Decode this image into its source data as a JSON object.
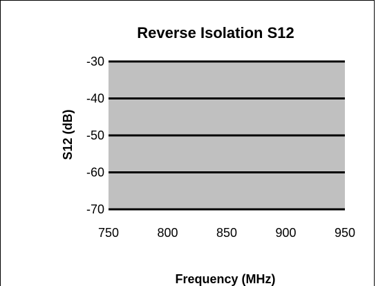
{
  "chart_data": {
    "type": "line",
    "title": "Reverse  Isolation S12",
    "xlabel": "Frequency (MHz)",
    "ylabel": "S12 (dB)",
    "xlim": [
      750,
      950
    ],
    "ylim": [
      -70,
      -30
    ],
    "xticks": [
      750,
      800,
      850,
      900,
      950
    ],
    "yticks": [
      -30,
      -40,
      -50,
      -60,
      -70
    ],
    "grid": "horizontal",
    "series": [],
    "colors": {
      "plot_area": "#c0c0c0",
      "gridline": "#000000",
      "frame": "#000000"
    }
  }
}
